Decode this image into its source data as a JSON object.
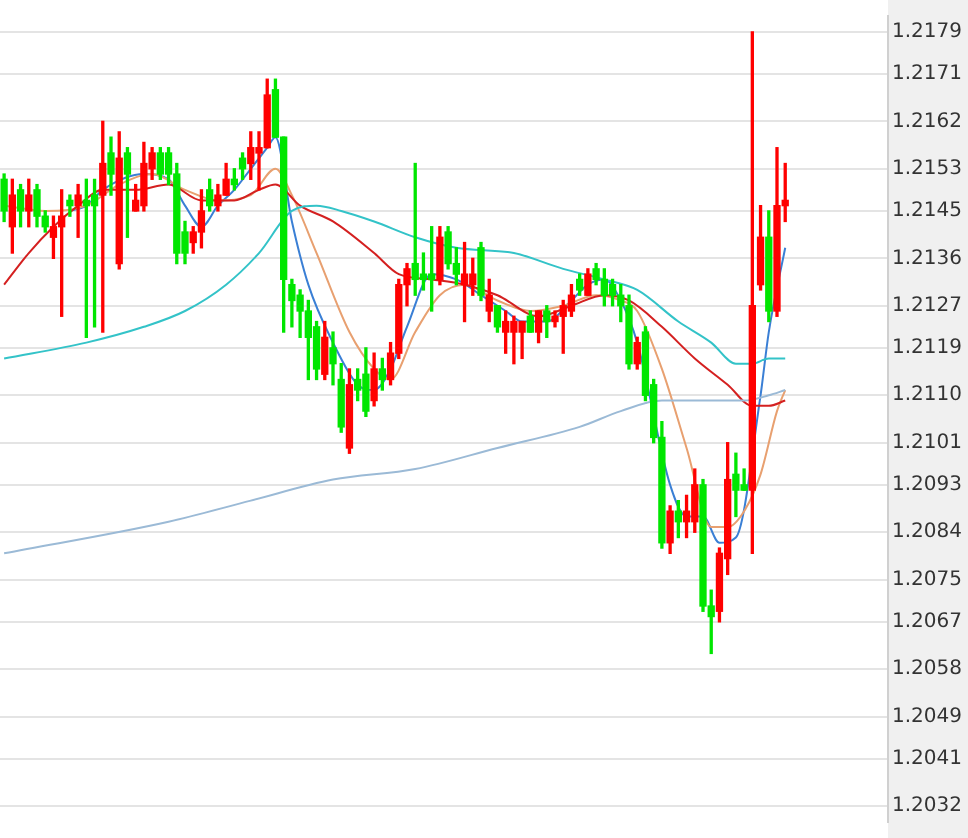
{
  "chart_data": {
    "type": "candlestick",
    "categories": [
      null,
      null,
      null,
      null,
      null,
      null,
      null,
      null,
      null,
      null,
      null,
      null,
      null,
      null,
      null,
      null,
      null,
      null,
      null,
      null,
      null,
      null,
      null,
      null,
      null,
      null,
      null,
      null,
      null,
      null,
      null,
      null,
      null,
      null,
      null,
      null,
      null,
      null,
      null,
      null,
      null,
      null,
      null,
      null,
      null,
      null,
      null,
      null,
      null,
      null,
      null,
      null,
      null,
      null,
      null,
      null,
      null,
      null,
      null,
      null,
      null,
      null,
      null,
      null,
      null,
      null,
      null,
      null,
      null,
      null,
      null,
      null,
      null,
      null,
      null,
      null,
      null,
      null,
      null,
      null,
      null,
      null,
      null,
      null,
      null,
      null,
      null,
      null,
      null,
      null,
      null,
      null,
      null,
      null,
      null,
      null,
      null,
      null,
      null,
      null,
      null,
      null,
      null,
      null,
      null,
      null,
      null,
      null
    ],
    "ohlc": [
      [
        1.2151,
        1.2152,
        1.2143,
        1.2145
      ],
      [
        1.2142,
        1.2151,
        1.2137,
        1.2148
      ],
      [
        1.2149,
        1.215,
        1.2142,
        1.2145
      ],
      [
        1.2145,
        1.2151,
        1.2142,
        1.2148
      ],
      [
        1.2149,
        1.215,
        1.2142,
        1.2144
      ],
      [
        1.2144,
        1.2145,
        1.2141,
        1.2142
      ],
      [
        1.214,
        1.2144,
        1.2136,
        1.2142
      ],
      [
        1.2142,
        1.2149,
        1.2125,
        1.2144
      ],
      [
        1.2147,
        1.2148,
        1.2144,
        1.2146
      ],
      [
        1.2146,
        1.215,
        1.214,
        1.2148
      ],
      [
        1.2147,
        1.2151,
        1.2121,
        1.2146
      ],
      [
        1.2148,
        1.2151,
        1.2123,
        1.2146
      ],
      [
        1.2148,
        1.2162,
        1.2122,
        1.2154
      ],
      [
        1.2156,
        1.2159,
        1.2148,
        1.2152
      ],
      [
        1.2135,
        1.216,
        1.2134,
        1.2155
      ],
      [
        1.2156,
        1.2157,
        1.214,
        1.2152
      ],
      [
        1.2145,
        1.215,
        1.2145,
        1.2147
      ],
      [
        1.2146,
        1.2158,
        1.2145,
        1.2154
      ],
      [
        1.2153,
        1.2157,
        1.2151,
        1.2156
      ],
      [
        1.2156,
        1.2157,
        1.2151,
        1.2152
      ],
      [
        1.2156,
        1.2157,
        1.215,
        1.2152
      ],
      [
        1.2152,
        1.2154,
        1.2135,
        1.2137
      ],
      [
        1.2141,
        1.2143,
        1.2135,
        1.2137
      ],
      [
        1.2139,
        1.2142,
        1.2137,
        1.2141
      ],
      [
        1.2141,
        1.2149,
        1.2138,
        1.2145
      ],
      [
        1.2149,
        1.2151,
        1.2145,
        1.2146
      ],
      [
        1.2146,
        1.215,
        1.2145,
        1.2148
      ],
      [
        1.2148,
        1.2154,
        1.2148,
        1.2151
      ],
      [
        1.2151,
        1.2153,
        1.2149,
        1.215
      ],
      [
        1.2155,
        1.2156,
        1.2151,
        1.2153
      ],
      [
        1.2154,
        1.216,
        1.2151,
        1.2157
      ],
      [
        1.2156,
        1.216,
        1.2149,
        1.2157
      ],
      [
        1.2157,
        1.217,
        1.2157,
        1.2167
      ],
      [
        1.2168,
        1.217,
        1.2159,
        1.2159
      ],
      [
        1.2159,
        1.2159,
        1.2122,
        1.2132
      ],
      [
        1.2131,
        1.2132,
        1.2123,
        1.2128
      ],
      [
        1.2129,
        1.213,
        1.2121,
        1.2126
      ],
      [
        1.2126,
        1.2128,
        1.2113,
        1.2121
      ],
      [
        1.2123,
        1.2124,
        1.2113,
        1.2115
      ],
      [
        1.2114,
        1.2124,
        1.2113,
        1.2121
      ],
      [
        1.2119,
        1.2122,
        1.2112,
        1.2116
      ],
      [
        1.2113,
        1.2116,
        1.2103,
        1.2104
      ],
      [
        1.21,
        1.2115,
        1.2099,
        1.2112
      ],
      [
        1.2113,
        1.2115,
        1.2109,
        1.2111
      ],
      [
        1.2114,
        1.2119,
        1.2106,
        1.2107
      ],
      [
        1.2109,
        1.2118,
        1.2108,
        1.2115
      ],
      [
        1.2115,
        1.2117,
        1.2111,
        1.2113
      ],
      [
        1.2113,
        1.212,
        1.2112,
        1.2118
      ],
      [
        1.2118,
        1.2132,
        1.2117,
        1.2131
      ],
      [
        1.2131,
        1.2135,
        1.2127,
        1.2134
      ],
      [
        1.2135,
        1.2154,
        1.2129,
        1.2132
      ],
      [
        1.2133,
        1.2137,
        1.213,
        1.2132
      ],
      [
        1.2133,
        1.2142,
        1.2126,
        1.2132
      ],
      [
        1.2132,
        1.2142,
        1.2131,
        1.214
      ],
      [
        1.2141,
        1.2142,
        1.2134,
        1.2135
      ],
      [
        1.2135,
        1.2138,
        1.2131,
        1.2133
      ],
      [
        1.2131,
        1.2139,
        1.2124,
        1.2133
      ],
      [
        1.2131,
        1.2136,
        1.2129,
        1.2133
      ],
      [
        1.2138,
        1.2139,
        1.2128,
        1.2129
      ],
      [
        1.2126,
        1.2132,
        1.2124,
        1.2129
      ],
      [
        1.2127,
        1.2127,
        1.2122,
        1.2123
      ],
      [
        1.2122,
        1.2126,
        1.2118,
        1.2124
      ],
      [
        1.2122,
        1.2125,
        1.2116,
        1.2124
      ],
      [
        1.2122,
        1.2124,
        1.2117,
        1.2124
      ],
      [
        1.2125,
        1.2126,
        1.2122,
        1.2122
      ],
      [
        1.2122,
        1.2126,
        1.212,
        1.2126
      ],
      [
        1.2126,
        1.2127,
        1.2121,
        1.2124
      ],
      [
        1.2124,
        1.2126,
        1.2123,
        1.2125
      ],
      [
        1.2125,
        1.2128,
        1.2118,
        1.2127
      ],
      [
        1.2126,
        1.2131,
        1.2125,
        1.2129
      ],
      [
        1.2132,
        1.2133,
        1.2129,
        1.213
      ],
      [
        1.2129,
        1.2134,
        1.2129,
        1.2133
      ],
      [
        1.2134,
        1.2135,
        1.2131,
        1.2132
      ],
      [
        1.2132,
        1.2134,
        1.2127,
        1.2129
      ],
      [
        1.2131,
        1.2132,
        1.2127,
        1.2129
      ],
      [
        1.2129,
        1.2131,
        1.2124,
        1.2127
      ],
      [
        1.2127,
        1.2129,
        1.2115,
        1.2116
      ],
      [
        1.2116,
        1.2121,
        1.2115,
        1.212
      ],
      [
        1.2122,
        1.2123,
        1.2109,
        1.211
      ],
      [
        1.2112,
        1.2113,
        1.2101,
        1.2102
      ],
      [
        1.2102,
        1.2105,
        1.2081,
        1.2082
      ],
      [
        1.2082,
        1.2089,
        1.208,
        1.2088
      ],
      [
        1.2088,
        1.209,
        1.2083,
        1.2086
      ],
      [
        1.2086,
        1.2091,
        1.2083,
        1.2088
      ],
      [
        1.2086,
        1.2096,
        1.2084,
        1.2093
      ],
      [
        1.2093,
        1.2094,
        1.2069,
        1.207
      ],
      [
        1.207,
        1.2073,
        1.2061,
        1.2068
      ],
      [
        1.2069,
        1.2081,
        1.2067,
        1.208
      ],
      [
        1.2079,
        1.2101,
        1.2076,
        1.2094
      ],
      [
        1.2095,
        1.2099,
        1.2087,
        1.2092
      ],
      [
        1.2093,
        1.2096,
        1.2092,
        1.2092
      ],
      [
        1.2092,
        1.2179,
        1.208,
        1.2127
      ],
      [
        1.2131,
        1.2146,
        1.213,
        1.214
      ],
      [
        1.214,
        1.2145,
        1.2124,
        1.2126
      ],
      [
        1.2126,
        1.2157,
        1.2125,
        1.2146
      ],
      [
        1.2146,
        1.2154,
        1.2143,
        1.2147
      ],
      null,
      null,
      null,
      null,
      null,
      null,
      null,
      null,
      null,
      null,
      null,
      null
    ],
    "colors": [
      "#00e600",
      "#ff0000",
      "#00e600",
      "#ff0000",
      "#00e600",
      "#00e600",
      "#ff0000",
      "#ff0000",
      "#00e600",
      "#ff0000",
      "#00e600",
      "#00e600",
      "#ff0000",
      "#00e600",
      "#ff0000",
      "#00e600",
      "#ff0000",
      "#ff0000",
      "#ff0000",
      "#00e600",
      "#00e600",
      "#00e600",
      "#00e600",
      "#ff0000",
      "#ff0000",
      "#00e600",
      "#ff0000",
      "#ff0000",
      "#00e600",
      "#00e600",
      "#ff0000",
      "#ff0000",
      "#ff0000",
      "#00e600",
      "#00e600",
      "#00e600",
      "#00e600",
      "#00e600",
      "#00e600",
      "#ff0000",
      "#00e600",
      "#00e600",
      "#ff0000",
      "#00e600",
      "#00e600",
      "#ff0000",
      "#00e600",
      "#ff0000",
      "#ff0000",
      "#ff0000",
      "#00e600",
      "#00e600",
      "#00e600",
      "#ff0000",
      "#00e600",
      "#00e600",
      "#ff0000",
      "#ff0000",
      "#00e600",
      "#ff0000",
      "#00e600",
      "#ff0000",
      "#ff0000",
      "#ff0000",
      "#00e600",
      "#ff0000",
      "#00e600",
      "#ff0000",
      "#ff0000",
      "#ff0000",
      "#00e600",
      "#ff0000",
      "#00e600",
      "#00e600",
      "#00e600",
      "#00e600",
      "#00e600",
      "#ff0000",
      "#00e600",
      "#00e600",
      "#00e600",
      "#ff0000",
      "#00e600",
      "#ff0000",
      "#ff0000",
      "#00e600",
      "#00e600",
      "#ff0000",
      "#ff0000",
      "#00e600",
      "#00e600",
      "#ff0000",
      "#ff0000",
      "#00e600",
      "#ff0000",
      "#ff0000",
      null,
      null,
      null,
      null,
      null,
      null,
      null,
      null,
      null,
      null,
      null,
      null
    ],
    "series": [
      {
        "type": "line",
        "color": "#9bbad6",
        "values": [
          1.208,
          null,
          null,
          null,
          null,
          null,
          null,
          null,
          null,
          null,
          null,
          null,
          null,
          null,
          null,
          null,
          null,
          null,
          null,
          null,
          1.2086,
          null,
          null,
          null,
          null,
          null,
          null,
          null,
          null,
          null,
          1.209,
          null,
          null,
          null,
          null,
          null,
          null,
          null,
          null,
          null,
          1.2094,
          null,
          null,
          null,
          null,
          null,
          null,
          null,
          null,
          null,
          1.2096,
          null,
          null,
          null,
          null,
          null,
          null,
          null,
          null,
          null,
          1.21,
          null,
          null,
          null,
          null,
          null,
          null,
          null,
          null,
          null,
          1.2104,
          null,
          null,
          null,
          null,
          1.2107,
          null,
          null,
          null,
          null,
          1.2109,
          null,
          null,
          null,
          null,
          1.2109,
          null,
          null,
          null,
          null,
          1.2109,
          null,
          null,
          1.211,
          null,
          1.2111,
          null,
          null,
          null,
          null,
          null,
          null,
          null,
          null,
          null,
          null,
          null,
          null
        ]
      },
      {
        "type": "line",
        "color": "#33c3c8",
        "values": [
          1.2117,
          null,
          null,
          null,
          null,
          null,
          null,
          null,
          null,
          null,
          1.212,
          null,
          null,
          null,
          null,
          null,
          null,
          1.2123,
          null,
          null,
          null,
          null,
          1.2126,
          null,
          null,
          null,
          null,
          1.2131,
          null,
          null,
          null,
          1.2137,
          null,
          null,
          null,
          1.2145,
          null,
          null,
          1.2146,
          null,
          null,
          1.2145,
          null,
          null,
          null,
          1.2143,
          null,
          null,
          null,
          null,
          1.214,
          null,
          null,
          null,
          null,
          1.2138,
          null,
          null,
          null,
          null,
          null,
          null,
          1.2137,
          null,
          null,
          null,
          null,
          null,
          1.2134,
          null,
          null,
          null,
          null,
          1.2132,
          null,
          null,
          null,
          1.213,
          null,
          null,
          null,
          null,
          1.2124,
          null,
          null,
          null,
          1.212,
          null,
          null,
          1.2116,
          null,
          1.2116,
          null,
          1.2117,
          null,
          1.2117,
          null,
          null,
          null,
          null,
          null,
          null,
          null,
          null,
          null,
          null,
          null,
          null
        ]
      },
      {
        "type": "line",
        "color": "#d42020",
        "values": [
          1.2131,
          null,
          null,
          1.2137,
          null,
          null,
          1.2142,
          null,
          null,
          1.2146,
          null,
          null,
          1.2149,
          null,
          null,
          null,
          1.2149,
          null,
          null,
          null,
          1.215,
          null,
          null,
          null,
          1.2147,
          null,
          null,
          null,
          1.2147,
          null,
          null,
          1.2149,
          null,
          1.215,
          null,
          null,
          1.2146,
          null,
          null,
          null,
          1.2143,
          null,
          null,
          null,
          null,
          1.2137,
          null,
          null,
          1.2133,
          null,
          null,
          null,
          1.2132,
          null,
          null,
          null,
          1.2131,
          null,
          null,
          null,
          1.2129,
          null,
          null,
          null,
          null,
          1.2125,
          null,
          null,
          null,
          1.2127,
          null,
          null,
          null,
          1.2129,
          null,
          null,
          1.2128,
          null,
          null,
          null,
          1.2123,
          null,
          null,
          null,
          1.2117,
          null,
          null,
          null,
          1.2112,
          null,
          null,
          1.2108,
          null,
          1.2108,
          null,
          1.2109,
          null,
          null,
          null,
          null,
          null,
          null,
          null,
          null,
          null,
          null,
          null,
          null
        ]
      },
      {
        "type": "line",
        "color": "#e8a070",
        "values": [
          1.2146,
          null,
          null,
          null,
          null,
          1.2145,
          null,
          null,
          null,
          null,
          1.2146,
          null,
          null,
          null,
          1.215,
          null,
          null,
          null,
          1.2152,
          null,
          null,
          null,
          1.2149,
          null,
          null,
          null,
          1.2147,
          null,
          null,
          null,
          1.2148,
          null,
          null,
          1.2153,
          null,
          1.2148,
          null,
          null,
          1.2137,
          null,
          null,
          null,
          1.2122,
          null,
          null,
          1.2115,
          null,
          1.2113,
          null,
          null,
          1.2122,
          null,
          null,
          1.2129,
          null,
          null,
          1.2131,
          null,
          null,
          null,
          1.2128,
          null,
          null,
          null,
          1.2126,
          null,
          null,
          null,
          1.2127,
          null,
          null,
          null,
          1.2129,
          null,
          null,
          1.2128,
          null,
          1.2126,
          null,
          null,
          1.2115,
          null,
          null,
          1.21,
          null,
          null,
          1.2085,
          null,
          1.2085,
          null,
          1.2088,
          null,
          1.2095,
          null,
          1.2107,
          1.2111,
          null,
          null,
          null,
          null,
          null,
          null,
          null,
          null,
          null,
          null,
          null,
          null
        ]
      },
      {
        "type": "line",
        "color": "#3a7fd5",
        "values": [
          null,
          null,
          null,
          null,
          null,
          null,
          null,
          null,
          1.2145,
          null,
          1.2146,
          null,
          1.2149,
          null,
          null,
          null,
          null,
          1.2152,
          null,
          null,
          1.2151,
          null,
          1.2146,
          null,
          1.2142,
          null,
          1.2146,
          null,
          1.2149,
          null,
          1.2153,
          null,
          1.2157,
          1.2159,
          null,
          1.2143,
          null,
          1.2131,
          null,
          null,
          1.212,
          null,
          null,
          1.2112,
          null,
          1.2111,
          null,
          1.2115,
          null,
          1.2123,
          null,
          null,
          1.2133,
          null,
          null,
          1.2132,
          null,
          null,
          1.2129,
          null,
          null,
          1.2126,
          null,
          1.2124,
          null,
          null,
          1.2124,
          null,
          null,
          1.2128,
          null,
          1.2131,
          null,
          1.2132,
          null,
          1.2128,
          null,
          1.212,
          null,
          null,
          null,
          1.2093,
          null,
          1.2087,
          null,
          1.2087,
          null,
          1.2082,
          null,
          1.2083,
          null,
          null,
          1.211,
          1.2122,
          null,
          1.2138,
          null,
          null,
          null,
          null,
          null,
          null,
          null,
          null,
          null,
          null,
          null,
          null
        ]
      }
    ],
    "ylim": [
      1.2029,
      1.2182
    ],
    "yticks": [
      {
        "value": 1.2179,
        "label": "1.2179"
      },
      {
        "value": 1.2171,
        "label": "1.2171"
      },
      {
        "value": 1.2162,
        "label": "1.2162"
      },
      {
        "value": 1.2153,
        "label": "1.2153"
      },
      {
        "value": 1.2145,
        "label": "1.2145"
      },
      {
        "value": 1.2136,
        "label": "1.2136"
      },
      {
        "value": 1.2127,
        "label": "1.2127"
      },
      {
        "value": 1.2119,
        "label": "1.2119"
      },
      {
        "value": 1.211,
        "label": "1.2110"
      },
      {
        "value": 1.2101,
        "label": "1.2101"
      },
      {
        "value": 1.2093,
        "label": "1.2093"
      },
      {
        "value": 1.2084,
        "label": "1.2084"
      },
      {
        "value": 1.2075,
        "label": "1.2075"
      },
      {
        "value": 1.2067,
        "label": "1.2067"
      },
      {
        "value": 1.2058,
        "label": "1.2058"
      },
      {
        "value": 1.2049,
        "label": "1.2049"
      },
      {
        "value": 1.2041,
        "label": "1.2041"
      },
      {
        "value": 1.2032,
        "label": "1.2032"
      }
    ],
    "tick_labels": "y",
    "grid": "y",
    "legend": false
  }
}
